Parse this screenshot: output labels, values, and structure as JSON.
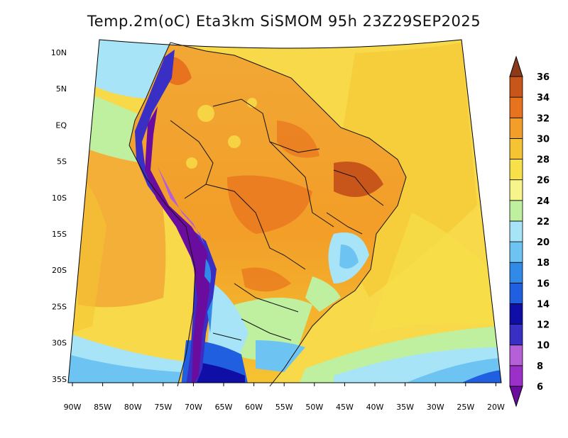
{
  "title": "Temp.2m(oC) Eta3km SiSMOM 95h 23Z29SEP2025",
  "map": {
    "variable": "2 m air temperature",
    "units": "oC",
    "lat_labels": [
      {
        "lat": 10,
        "label": "10N"
      },
      {
        "lat": 5,
        "label": "5N"
      },
      {
        "lat": 0,
        "label": "EQ"
      },
      {
        "lat": -5,
        "label": "5S"
      },
      {
        "lat": -10,
        "label": "10S"
      },
      {
        "lat": -15,
        "label": "15S"
      },
      {
        "lat": -20,
        "label": "20S"
      },
      {
        "lat": -25,
        "label": "25S"
      },
      {
        "lat": -30,
        "label": "30S"
      },
      {
        "lat": -35,
        "label": "35S"
      }
    ],
    "lon_labels": [
      {
        "lon": -90,
        "label": "90W"
      },
      {
        "lon": -85,
        "label": "85W"
      },
      {
        "lon": -80,
        "label": "80W"
      },
      {
        "lon": -75,
        "label": "75W"
      },
      {
        "lon": -70,
        "label": "70W"
      },
      {
        "lon": -65,
        "label": "65W"
      },
      {
        "lon": -60,
        "label": "60W"
      },
      {
        "lon": -55,
        "label": "55W"
      },
      {
        "lon": -50,
        "label": "50W"
      },
      {
        "lon": -45,
        "label": "45W"
      },
      {
        "lon": -40,
        "label": "40W"
      },
      {
        "lon": -35,
        "label": "35W"
      },
      {
        "lon": -30,
        "label": "30W"
      },
      {
        "lon": -25,
        "label": "25W"
      },
      {
        "lon": -20,
        "label": "20W"
      }
    ]
  },
  "colorbar": {
    "ticks": [
      "6",
      "8",
      "10",
      "12",
      "14",
      "16",
      "18",
      "20",
      "22",
      "24",
      "26",
      "28",
      "30",
      "32",
      "34",
      "36"
    ],
    "colors": [
      "#6a0d9e",
      "#9b30c8",
      "#b55fd8",
      "#3a2fc4",
      "#0f0fa8",
      "#1f5fe0",
      "#2f8ae8",
      "#6dc4f2",
      "#a8e4f7",
      "#bff0a0",
      "#f6f48a",
      "#f7e048",
      "#f5c432",
      "#f29e28",
      "#e8731e",
      "#c8561a",
      "#8b3b1a"
    ]
  }
}
